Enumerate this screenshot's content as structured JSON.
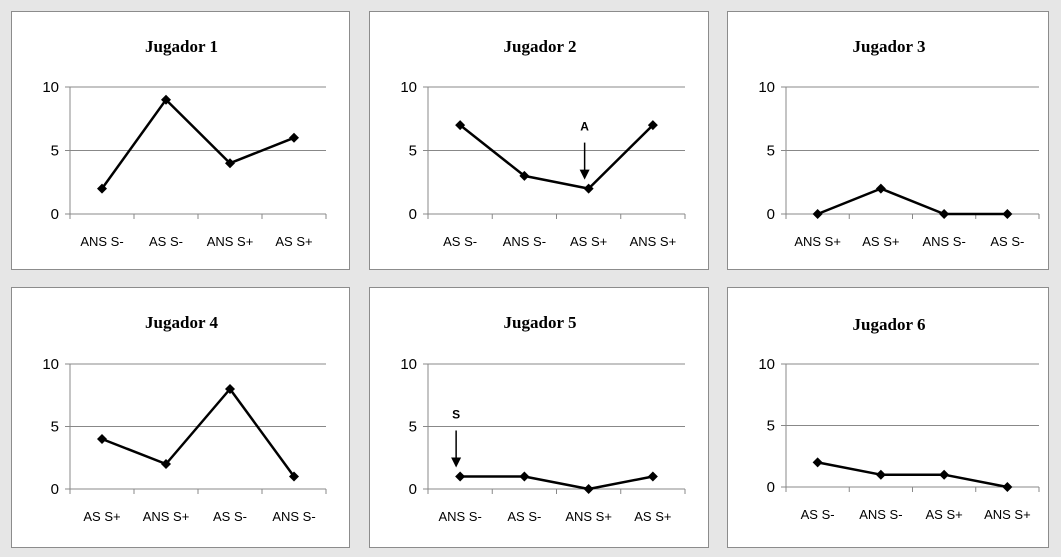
{
  "chart_data": [
    {
      "type": "line",
      "title": "Jugador 1",
      "categories": [
        "ANS S-",
        "AS S-",
        "ANS S+",
        "AS S+"
      ],
      "values": [
        2,
        9,
        4,
        6
      ],
      "ylim": [
        0,
        10
      ],
      "yticks": [
        0,
        5,
        10
      ],
      "grid": true,
      "annotation": null
    },
    {
      "type": "line",
      "title": "Jugador 2",
      "categories": [
        "AS S-",
        "ANS S-",
        "AS S+",
        "ANS S+"
      ],
      "values": [
        7,
        3,
        2,
        7
      ],
      "ylim": [
        0,
        10
      ],
      "yticks": [
        0,
        5,
        10
      ],
      "grid": true,
      "annotation": {
        "text": "A",
        "index": 2
      }
    },
    {
      "type": "line",
      "title": "Jugador 3",
      "categories": [
        "ANS S+",
        "AS S+",
        "ANS S-",
        "AS S-"
      ],
      "values": [
        0,
        2,
        0,
        0
      ],
      "ylim": [
        0,
        10
      ],
      "yticks": [
        0,
        5,
        10
      ],
      "grid": true,
      "annotation": null
    },
    {
      "type": "line",
      "title": "Jugador 4",
      "categories": [
        "AS S+",
        "ANS S+",
        "AS S-",
        "ANS S-"
      ],
      "values": [
        4,
        2,
        8,
        1
      ],
      "ylim": [
        0,
        10
      ],
      "yticks": [
        0,
        5,
        10
      ],
      "grid": true,
      "annotation": null
    },
    {
      "type": "line",
      "title": "Jugador 5",
      "categories": [
        "ANS S-",
        "AS S-",
        "ANS S+",
        "AS S+"
      ],
      "values": [
        1,
        1,
        0,
        1
      ],
      "ylim": [
        0,
        10
      ],
      "yticks": [
        0,
        5,
        10
      ],
      "grid": true,
      "annotation": {
        "text": "S",
        "index": 0
      }
    },
    {
      "type": "line",
      "title": "Jugador 6",
      "categories": [
        "AS S-",
        "ANS S-",
        "AS S+",
        "ANS S+"
      ],
      "values": [
        2,
        1,
        1,
        0
      ],
      "ylim": [
        0,
        10
      ],
      "yticks": [
        0,
        5,
        10
      ],
      "grid": true,
      "annotation": null
    }
  ],
  "colors": {
    "line": "#000000",
    "grid": "#888888",
    "axis": "#888888"
  }
}
